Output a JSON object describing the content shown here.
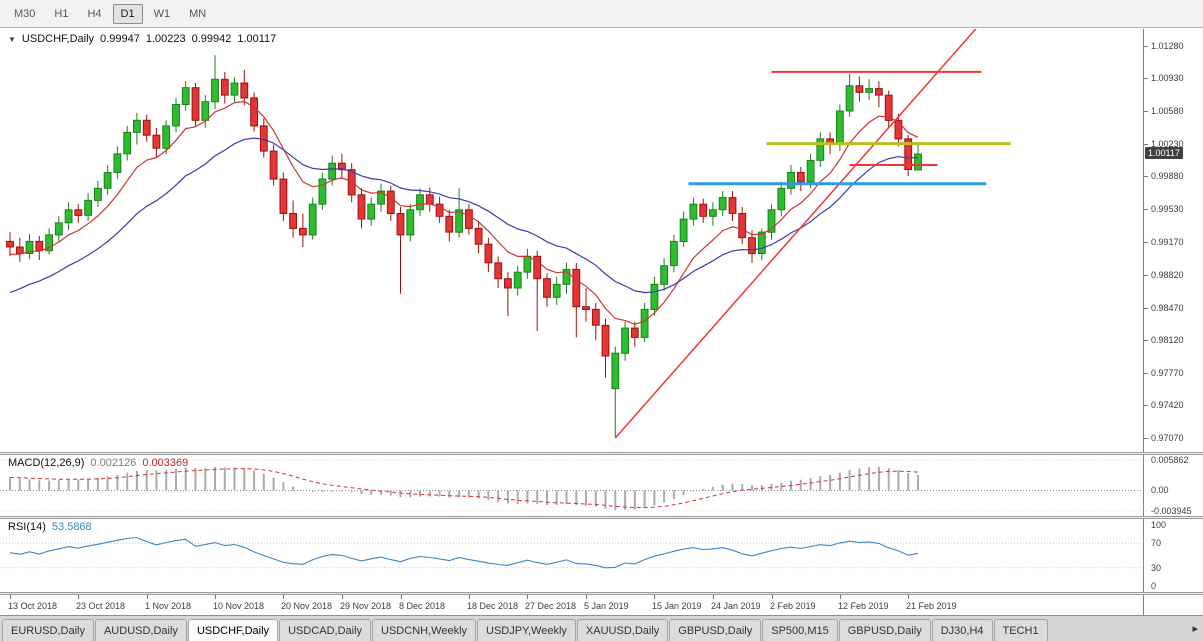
{
  "toolbar": {
    "timeframes": [
      {
        "label": "M30",
        "active": false
      },
      {
        "label": "H1",
        "active": false
      },
      {
        "label": "H4",
        "active": false
      },
      {
        "label": "D1",
        "active": true
      },
      {
        "label": "W1",
        "active": false
      },
      {
        "label": "MN",
        "active": false
      }
    ]
  },
  "tabs": {
    "items": [
      {
        "label": "EURUSD,Daily",
        "active": false
      },
      {
        "label": "AUDUSD,Daily",
        "active": false
      },
      {
        "label": "USDCHF,Daily",
        "active": true
      },
      {
        "label": "USDCAD,Daily",
        "active": false
      },
      {
        "label": "USDCNH,Weekly",
        "active": false
      },
      {
        "label": "USDJPY,Weekly",
        "active": false
      },
      {
        "label": "XAUUSD,Daily",
        "active": false
      },
      {
        "label": "GBPUSD,Daily",
        "active": false
      },
      {
        "label": "SP500,M15",
        "active": false
      },
      {
        "label": "GBPUSD,Daily",
        "active": false
      },
      {
        "label": "DJ30,H4",
        "active": false
      },
      {
        "label": "TECH1",
        "active": false
      }
    ],
    "scroll_right": "▸"
  },
  "chart_data": {
    "type": "candlestick",
    "symbol": "USDCHF",
    "timeframe": "Daily",
    "header": {
      "collapse_arrow": "▼",
      "symbol": "USDCHF,Daily",
      "open": "0.99947",
      "high": "1.00223",
      "low": "0.99942",
      "close": "1.00117"
    },
    "style": {
      "up_fill": "#2ebd2e",
      "up_border": "#1a801a",
      "down_fill": "#e33636",
      "down_border": "#a01010",
      "background": "#ffffff"
    },
    "price_axis": {
      "min": 0.9692,
      "max": 1.0146,
      "current": "1.00117",
      "ticks": [
        "1.01280",
        "1.00930",
        "1.00580",
        "1.00230",
        "0.99880",
        "0.99530",
        "0.99170",
        "0.98820",
        "0.98470",
        "0.98120",
        "0.97770",
        "0.97420",
        "0.97070"
      ]
    },
    "ohlc": [
      [
        0.9918,
        0.9928,
        0.9902,
        0.9912
      ],
      [
        0.9912,
        0.9922,
        0.9896,
        0.9905
      ],
      [
        0.9905,
        0.9926,
        0.9899,
        0.9918
      ],
      [
        0.9918,
        0.9924,
        0.9898,
        0.9908
      ],
      [
        0.9908,
        0.9932,
        0.9904,
        0.9925
      ],
      [
        0.9925,
        0.9945,
        0.9918,
        0.9938
      ],
      [
        0.9938,
        0.996,
        0.993,
        0.9952
      ],
      [
        0.9952,
        0.9958,
        0.9938,
        0.9946
      ],
      [
        0.9946,
        0.997,
        0.994,
        0.9962
      ],
      [
        0.9962,
        0.9983,
        0.9955,
        0.9975
      ],
      [
        0.9975,
        1.0,
        0.9968,
        0.9992
      ],
      [
        0.9992,
        1.002,
        0.9985,
        1.0012
      ],
      [
        1.0012,
        1.0042,
        1.0005,
        1.0035
      ],
      [
        1.0035,
        1.0056,
        1.0022,
        1.0048
      ],
      [
        1.0048,
        1.0054,
        1.0025,
        1.0032
      ],
      [
        1.0032,
        1.004,
        1.0008,
        1.0018
      ],
      [
        1.0018,
        1.0048,
        1.0012,
        1.0042
      ],
      [
        1.0042,
        1.0072,
        1.0035,
        1.0065
      ],
      [
        1.0065,
        1.009,
        1.0058,
        1.0083
      ],
      [
        1.0083,
        1.0088,
        1.0042,
        1.0048
      ],
      [
        1.0048,
        1.0075,
        1.004,
        1.0068
      ],
      [
        1.0068,
        1.0118,
        1.006,
        1.0092
      ],
      [
        1.0092,
        1.01,
        1.0066,
        1.0075
      ],
      [
        1.0075,
        1.0094,
        1.0068,
        1.0088
      ],
      [
        1.0088,
        1.0102,
        1.0064,
        1.0072
      ],
      [
        1.0072,
        1.0078,
        1.0036,
        1.0042
      ],
      [
        1.0042,
        1.005,
        1.0008,
        1.0015
      ],
      [
        1.0015,
        1.0022,
        0.9978,
        0.9985
      ],
      [
        0.9985,
        0.9992,
        0.994,
        0.9948
      ],
      [
        0.9948,
        0.9962,
        0.9922,
        0.9932
      ],
      [
        0.9932,
        0.9948,
        0.9912,
        0.9925
      ],
      [
        0.9925,
        0.9965,
        0.992,
        0.9958
      ],
      [
        0.9958,
        0.9992,
        0.9952,
        0.9985
      ],
      [
        0.9985,
        1.001,
        0.9978,
        1.0002
      ],
      [
        1.0002,
        1.0012,
        0.9985,
        0.9995
      ],
      [
        0.9995,
        1.0002,
        0.996,
        0.9968
      ],
      [
        0.9968,
        0.9975,
        0.9932,
        0.9942
      ],
      [
        0.9942,
        0.9965,
        0.9935,
        0.9958
      ],
      [
        0.9958,
        0.998,
        0.995,
        0.9972
      ],
      [
        0.9972,
        0.9978,
        0.994,
        0.9948
      ],
      [
        0.9948,
        0.9955,
        0.9862,
        0.9925
      ],
      [
        0.9925,
        0.9958,
        0.9918,
        0.9952
      ],
      [
        0.9952,
        0.9975,
        0.9945,
        0.9968
      ],
      [
        0.9968,
        0.9976,
        0.995,
        0.9958
      ],
      [
        0.9958,
        0.9966,
        0.9938,
        0.9945
      ],
      [
        0.9945,
        0.9952,
        0.9918,
        0.9928
      ],
      [
        0.9928,
        0.9975,
        0.9922,
        0.9952
      ],
      [
        0.9952,
        0.9958,
        0.9925,
        0.9932
      ],
      [
        0.9932,
        0.994,
        0.9905,
        0.9915
      ],
      [
        0.9915,
        0.9922,
        0.9885,
        0.9895
      ],
      [
        0.9895,
        0.9902,
        0.9868,
        0.9878
      ],
      [
        0.9878,
        0.9885,
        0.9838,
        0.9868
      ],
      [
        0.9868,
        0.9892,
        0.986,
        0.9885
      ],
      [
        0.9885,
        0.991,
        0.9878,
        0.9902
      ],
      [
        0.9902,
        0.9908,
        0.9822,
        0.9878
      ],
      [
        0.9878,
        0.9884,
        0.9848,
        0.9858
      ],
      [
        0.9858,
        0.988,
        0.985,
        0.9872
      ],
      [
        0.9872,
        0.9895,
        0.9862,
        0.9888
      ],
      [
        0.9888,
        0.9895,
        0.9815,
        0.9848
      ],
      [
        0.9848,
        0.9868,
        0.9832,
        0.9845
      ],
      [
        0.9845,
        0.9852,
        0.9812,
        0.9828
      ],
      [
        0.9828,
        0.9835,
        0.9772,
        0.9795
      ],
      [
        0.976,
        0.9805,
        0.9708,
        0.9798
      ],
      [
        0.9798,
        0.9832,
        0.979,
        0.9825
      ],
      [
        0.9825,
        0.9832,
        0.9805,
        0.9815
      ],
      [
        0.9815,
        0.9852,
        0.981,
        0.9845
      ],
      [
        0.9845,
        0.988,
        0.9838,
        0.9872
      ],
      [
        0.9872,
        0.99,
        0.9865,
        0.9892
      ],
      [
        0.9892,
        0.9925,
        0.9885,
        0.9918
      ],
      [
        0.9918,
        0.995,
        0.9912,
        0.9942
      ],
      [
        0.9942,
        0.9965,
        0.9935,
        0.9958
      ],
      [
        0.9958,
        0.9964,
        0.9938,
        0.9945
      ],
      [
        0.9945,
        0.996,
        0.9935,
        0.9952
      ],
      [
        0.9952,
        0.9972,
        0.9945,
        0.9965
      ],
      [
        0.9965,
        0.9972,
        0.994,
        0.9948
      ],
      [
        0.9948,
        0.9955,
        0.9915,
        0.9922
      ],
      [
        0.9922,
        0.993,
        0.9895,
        0.9905
      ],
      [
        0.9905,
        0.9932,
        0.9898,
        0.9928
      ],
      [
        0.9928,
        0.9958,
        0.992,
        0.9952
      ],
      [
        0.9952,
        0.9982,
        0.9945,
        0.9975
      ],
      [
        0.9975,
        1.0,
        0.9968,
        0.9992
      ],
      [
        0.9992,
        0.9998,
        0.9972,
        0.9982
      ],
      [
        0.9982,
        1.0012,
        0.9975,
        1.0005
      ],
      [
        1.0005,
        1.0035,
        0.9998,
        1.0028
      ],
      [
        1.0028,
        1.0035,
        1.0012,
        1.0022
      ],
      [
        1.0022,
        1.0065,
        1.0015,
        1.0058
      ],
      [
        1.0058,
        1.0098,
        1.0052,
        1.0085
      ],
      [
        1.0085,
        1.0095,
        1.0068,
        1.0078
      ],
      [
        1.0078,
        1.0092,
        1.007,
        1.0082
      ],
      [
        1.0082,
        1.009,
        1.0062,
        1.0075
      ],
      [
        1.0075,
        1.008,
        1.004,
        1.0048
      ],
      [
        1.0048,
        1.0055,
        1.002,
        1.0028
      ],
      [
        1.0028,
        1.0032,
        0.9988,
        0.9995
      ],
      [
        0.99947,
        1.00223,
        0.99942,
        1.00117
      ]
    ],
    "date_labels": [
      {
        "i": 0,
        "label": "13 Oct 2018"
      },
      {
        "i": 7,
        "label": "23 Oct 2018"
      },
      {
        "i": 14,
        "label": "1 Nov 2018"
      },
      {
        "i": 21,
        "label": "10 Nov 2018"
      },
      {
        "i": 28,
        "label": "20 Nov 2018"
      },
      {
        "i": 34,
        "label": "29 Nov 2018"
      },
      {
        "i": 40,
        "label": "8 Dec 2018"
      },
      {
        "i": 47,
        "label": "18 Dec 2018"
      },
      {
        "i": 53,
        "label": "27 Dec 2018"
      },
      {
        "i": 59,
        "label": "5 Jan 2019"
      },
      {
        "i": 66,
        "label": "15 Jan 2019"
      },
      {
        "i": 72,
        "label": "24 Jan 2019"
      },
      {
        "i": 78,
        "label": "2 Feb 2019"
      },
      {
        "i": 85,
        "label": "12 Feb 2019"
      },
      {
        "i": 92,
        "label": "21 Feb 2019"
      }
    ],
    "overlays": {
      "ma_fast": {
        "period": 8,
        "seed": 0.9902,
        "color": "#cf3434"
      },
      "ma_slow": {
        "period": 20,
        "seed": 0.9858,
        "color": "#3b3bb0"
      },
      "trendline": {
        "from": 62,
        "price_from": 0.9707,
        "to": 99,
        "price_to": 1.0147,
        "color": "#f23535"
      },
      "hlines": [
        {
          "price": 1.01,
          "from": 78,
          "to": 99.5,
          "color": "#f23535",
          "width": 2
        },
        {
          "price": 1.0023,
          "from": 77.5,
          "to": 102.5,
          "color": "#b9be23",
          "width": 3
        },
        {
          "price": 0.998,
          "from": 69.5,
          "to": 100,
          "color": "#2e9ae0",
          "width": 3
        },
        {
          "price": 1.0,
          "from": 86,
          "to": 95,
          "color": "#f23535",
          "width": 2
        }
      ]
    },
    "macd": {
      "label": "MACD(12,26,9)",
      "value_main": "0.002126",
      "value_signal": "0.003369",
      "fast": 12,
      "slow": 26,
      "signal": 9,
      "initial_value": 0.0027,
      "axis_max": 0.005862,
      "axis_min": -0.003945,
      "axis_labels": [
        {
          "text": "0.005862",
          "value": 0.005862
        },
        {
          "text": "0.00",
          "value": 0
        },
        {
          "text": "-0.003945",
          "value": -0.003945
        }
      ],
      "bar_color": "#ababab",
      "signal_color": "#cf3434"
    },
    "rsi": {
      "label": "RSI(14)",
      "value": "53.5868",
      "period": 14,
      "seed_gain": 0.0006,
      "seed_loss": 0.0005,
      "color": "#3d85c6",
      "levels": [
        70,
        30
      ],
      "axis_labels": [
        {
          "text": "100",
          "value": 100
        },
        {
          "text": "70",
          "value": 70
        },
        {
          "text": "30",
          "value": 30
        },
        {
          "text": "0",
          "value": 0
        }
      ]
    }
  }
}
